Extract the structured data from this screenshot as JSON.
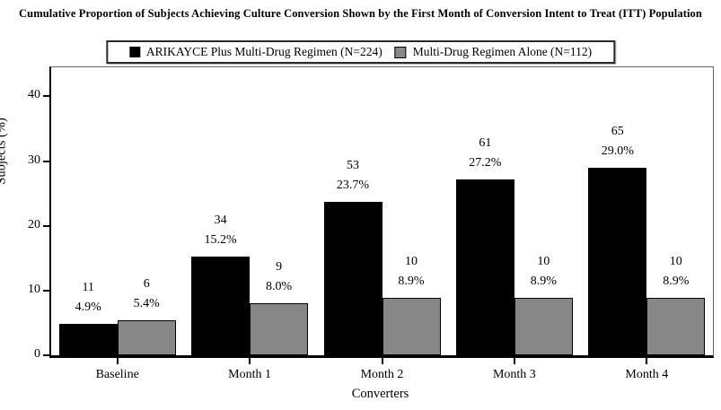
{
  "chart_data": {
    "type": "bar",
    "title": "Cumulative Proportion of Subjects Achieving Culture Conversion Shown by the First Month of Conversion Intent to Treat (ITT) Population",
    "xlabel": "Converters",
    "ylabel": "Subjects (%)",
    "categories": [
      "Baseline",
      "Month 1",
      "Month 2",
      "Month 3",
      "Month 4"
    ],
    "yticks": [
      0,
      10,
      20,
      30,
      40
    ],
    "ylim": [
      0,
      44.5
    ],
    "grid": false,
    "legend_position": "top",
    "series": [
      {
        "name": "ARIKAYCE Plus Multi-Drug Regimen (N=224)",
        "color": "#000000",
        "values": [
          4.9,
          15.2,
          23.7,
          27.2,
          29.0
        ],
        "counts": [
          11,
          34,
          53,
          61,
          65
        ],
        "percent_labels": [
          "4.9%",
          "15.2%",
          "23.7%",
          "27.2%",
          "29.0%"
        ]
      },
      {
        "name": "Multi-Drug Regimen Alone (N=112)",
        "color": "#878787",
        "values": [
          5.4,
          8.0,
          8.9,
          8.9,
          8.9
        ],
        "counts": [
          6,
          9,
          10,
          10,
          10
        ],
        "percent_labels": [
          "5.4%",
          "8.0%",
          "8.9%",
          "8.9%",
          "8.9%"
        ]
      }
    ]
  }
}
